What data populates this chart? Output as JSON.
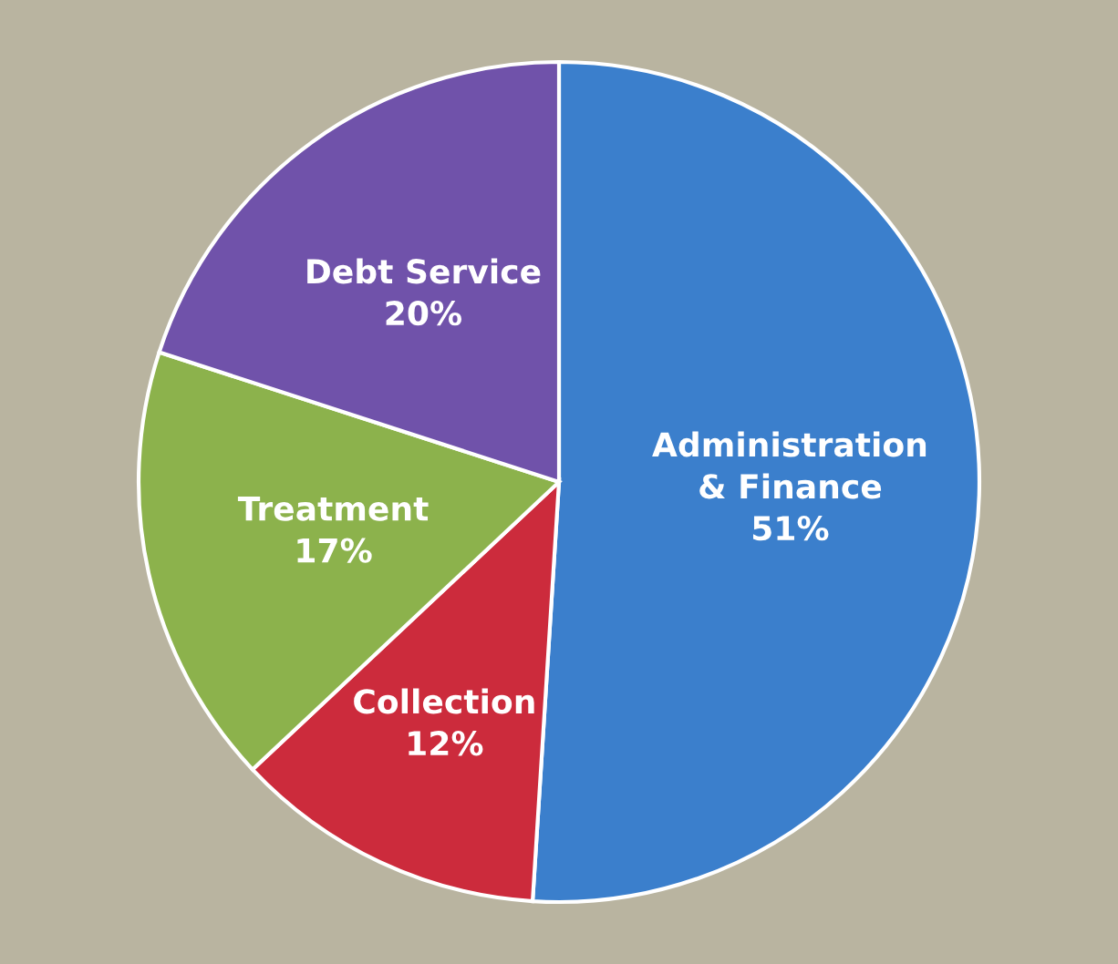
{
  "chart_data": {
    "type": "pie",
    "categories": [
      "Administration\n& Finance",
      "Collection",
      "Treatment",
      "Debt Service"
    ],
    "values": [
      51,
      12,
      17,
      20
    ],
    "value_labels": [
      "51%",
      "12%",
      "17%",
      "20%"
    ],
    "colors": [
      "#3b7fcc",
      "#cc2b3c",
      "#8cb24c",
      "#7052aa"
    ],
    "legend": false
  }
}
